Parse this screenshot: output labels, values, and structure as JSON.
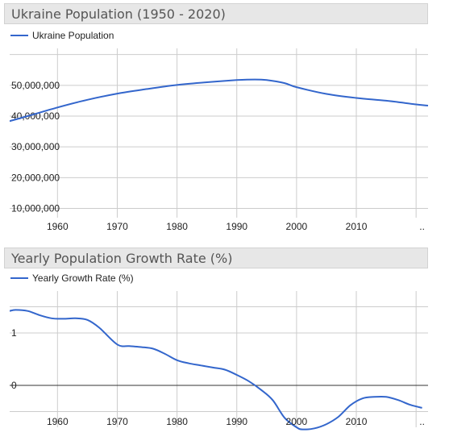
{
  "chart_data": [
    {
      "type": "line",
      "title": "Ukraine Population (1950 - 2020)",
      "xlabel": "",
      "ylabel": "",
      "xlim": [
        1952,
        2022
      ],
      "ylim": [
        7000000,
        62000000
      ],
      "x_ticks": [
        "1960",
        "1970",
        "1980",
        "1990",
        "2000",
        "2010",
        ".."
      ],
      "y_ticks": [
        "10,000,000",
        "20,000,000",
        "30,000,000",
        "40,000,000",
        "50,000,000"
      ],
      "grid": true,
      "legend": "top-left",
      "colors": {
        "line": "#3366cc",
        "grid": "#cccccc",
        "header_bg": "#e7e7e7"
      },
      "series": [
        {
          "name": "Ukraine Population",
          "x": [
            1950,
            1955,
            1960,
            1965,
            1970,
            1975,
            1980,
            1985,
            1990,
            1993,
            1995,
            1998,
            2000,
            2005,
            2010,
            2015,
            2020,
            2022
          ],
          "y": [
            37300000,
            40000000,
            42800000,
            45300000,
            47300000,
            48800000,
            50100000,
            51000000,
            51700000,
            51900000,
            51700000,
            50700000,
            49400000,
            47200000,
            45900000,
            45000000,
            43800000,
            43400000
          ]
        }
      ]
    },
    {
      "type": "line",
      "title": "Yearly Population Growth Rate (%)",
      "xlabel": "",
      "ylabel": "",
      "xlim": [
        1952,
        2022
      ],
      "ylim": [
        -0.8,
        1.8
      ],
      "x_ticks": [
        "1960",
        "1970",
        "1980",
        "1990",
        "2000",
        "2010",
        ".."
      ],
      "y_ticks": [
        "0",
        "1"
      ],
      "grid": true,
      "legend": "top-left",
      "colors": {
        "line": "#3366cc",
        "grid": "#cccccc",
        "zero_line": "#333333",
        "header_bg": "#e7e7e7"
      },
      "series": [
        {
          "name": "Yearly Growth Rate (%)",
          "x": [
            1952,
            1953,
            1955,
            1957,
            1959,
            1961,
            1963,
            1965,
            1967,
            1970,
            1972,
            1974,
            1976,
            1978,
            1980,
            1982,
            1984,
            1986,
            1988,
            1990,
            1992,
            1994,
            1996,
            1998,
            2000,
            2001,
            2003,
            2005,
            2007,
            2009,
            2011,
            2013,
            2015,
            2017,
            2019,
            2021
          ],
          "y": [
            1.42,
            1.44,
            1.42,
            1.34,
            1.28,
            1.27,
            1.28,
            1.25,
            1.1,
            0.78,
            0.75,
            0.73,
            0.7,
            0.6,
            0.48,
            0.42,
            0.38,
            0.34,
            0.3,
            0.2,
            0.08,
            -0.08,
            -0.28,
            -0.62,
            -0.8,
            -0.84,
            -0.82,
            -0.74,
            -0.6,
            -0.38,
            -0.25,
            -0.22,
            -0.22,
            -0.28,
            -0.37,
            -0.43
          ]
        }
      ]
    }
  ]
}
